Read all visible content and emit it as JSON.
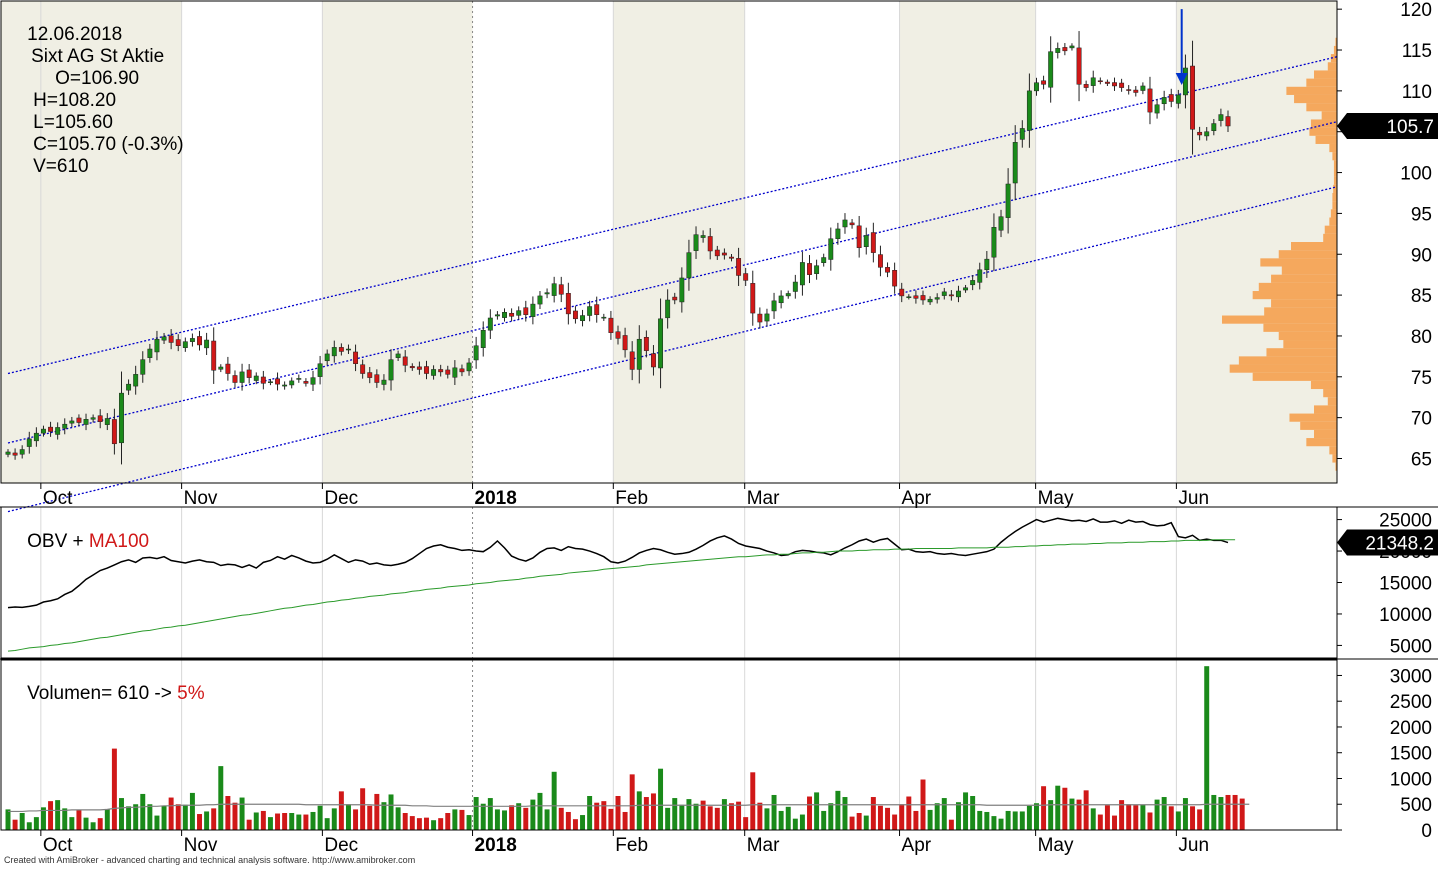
{
  "header": {
    "date": "12.06.2018",
    "name": "Sixt AG St Aktie",
    "open": "O=106.90",
    "high": "H=108.20",
    "low": "L=105.60",
    "close": "C=105.70 (-0.3%)",
    "vol": "V=610"
  },
  "obv_header": {
    "label": "OBV + ",
    "ma": "MA100"
  },
  "volume_header": {
    "label": "Volumen= 610 -> ",
    "pct": "5%"
  },
  "footer": "Created with AmiBroker - advanced charting and technical analysis software. http://www.amibroker.com",
  "colors": {
    "up": "#1a8a1a",
    "down": "#d01818",
    "channel": "#0000cc",
    "obv": "#000000",
    "obv_ma": "#2a9a2a",
    "vol_ma": "#808080",
    "profile": "#f5a04e",
    "shade": "#f0efe4",
    "arrow": "#0033cc"
  },
  "chart_data": [
    {
      "type": "candlestick",
      "title": "12.06.2018 Sixt AG St Aktie",
      "x_range": [
        "2017-09-25",
        "2018-06-12"
      ],
      "ylim": [
        62,
        121
      ],
      "y_ticks": [
        65,
        70,
        75,
        80,
        85,
        90,
        95,
        100,
        105,
        110,
        115,
        120
      ],
      "month_labels": [
        {
          "label": "Oct",
          "date": "2017-10-02",
          "bold": false
        },
        {
          "label": "Nov",
          "date": "2017-11-01",
          "bold": false
        },
        {
          "label": "Dec",
          "date": "2017-12-01",
          "bold": false
        },
        {
          "label": "2018",
          "date": "2018-01-02",
          "bold": true
        },
        {
          "label": "Feb",
          "date": "2018-02-01",
          "bold": false
        },
        {
          "label": "Mar",
          "date": "2018-03-01",
          "bold": false
        },
        {
          "label": "Apr",
          "date": "2018-04-03",
          "bold": false
        },
        {
          "label": "May",
          "date": "2018-05-02",
          "bold": false
        },
        {
          "label": "Jun",
          "date": "2018-06-01",
          "bold": false
        }
      ],
      "last_value": "105.7",
      "channel": {
        "style": "dotted",
        "start": "2017-09-25",
        "end": "2018-06-12",
        "lines": [
          {
            "y0": 75.4,
            "y1": 111.0
          },
          {
            "y0": 66.9,
            "y1": 103.0
          },
          {
            "y0": 58.5,
            "y1": 95.0
          }
        ]
      },
      "arrow": {
        "date": "2018-05-31",
        "from": 120.0,
        "to": 111.2
      },
      "closes": [
        65.8,
        65.4,
        66.1,
        67.4,
        68.1,
        68.6,
        68.3,
        68.8,
        69.2,
        69.6,
        69.4,
        69.8,
        70.0,
        69.5,
        69.9,
        66.8,
        73.0,
        74.1,
        75.3,
        77.1,
        78.4,
        79.6,
        79.9,
        79.2,
        78.8,
        79.3,
        79.7,
        78.9,
        79.5,
        75.8,
        76.2,
        75.4,
        74.3,
        75.6,
        74.9,
        75.1,
        74.2,
        74.4,
        74.1,
        74.0,
        74.5,
        74.8,
        74.2,
        74.9,
        76.6,
        77.8,
        78.6,
        78.1,
        78.4,
        76.6,
        75.4,
        74.9,
        74.3,
        74.6,
        77.1,
        77.8,
        76.4,
        76.1,
        75.9,
        75.4,
        75.9,
        75.6,
        75.3,
        76.1,
        75.6,
        76.7,
        78.8,
        80.7,
        82.2,
        82.6,
        82.9,
        82.4,
        83.1,
        82.6,
        83.9,
        84.9,
        85.3,
        86.4,
        85.1,
        82.7,
        82.1,
        82.5,
        83.6,
        82.6,
        82.3,
        80.4,
        79.7,
        78.3,
        75.9,
        79.6,
        78.2,
        76.2,
        82.1,
        84.4,
        84.4,
        87.1,
        90.2,
        92.4,
        92.3,
        90.4,
        89.8,
        89.9,
        89.5,
        87.4,
        86.8,
        82.8,
        81.7,
        82.7,
        84.3,
        84.9,
        85.2,
        86.6,
        89.0,
        87.5,
        88.6,
        89.6,
        91.9,
        93.1,
        94.2,
        93.6,
        90.8,
        92.3,
        90.2,
        88.4,
        87.8,
        86.1,
        84.9,
        84.8,
        84.6,
        84.4,
        84.5,
        84.7,
        85.4,
        84.9,
        85.5,
        85.9,
        86.8,
        88.1,
        89.4,
        93.3,
        94.6,
        98.6,
        103.7,
        105.4,
        110.0,
        111.0,
        110.8,
        114.8,
        115.2,
        114.9,
        115.5,
        110.8,
        110.4,
        111.6,
        111.2,
        110.9,
        110.6,
        110.4,
        110.1,
        109.8,
        110.6,
        107.4,
        108.3,
        109.2,
        108.7,
        109.5,
        112.8,
        105.3,
        104.6,
        105.0,
        106.0,
        107.1,
        105.7
      ],
      "price_profile": {
        "type": "horizontal-histogram",
        "levels": [
          63,
          64,
          65,
          66,
          67,
          68,
          69,
          70,
          71,
          72,
          73,
          74,
          75,
          76,
          77,
          78,
          79,
          80,
          81,
          82,
          83,
          84,
          85,
          86,
          87,
          88,
          89,
          90,
          91,
          92,
          93,
          94,
          95,
          96,
          97,
          98,
          99,
          100,
          101,
          102,
          103,
          104,
          105,
          106,
          107,
          108,
          109,
          110,
          111,
          112,
          113,
          114,
          115,
          116
        ],
        "weights": [
          0,
          2,
          6,
          10,
          40,
          30,
          48,
          62,
          30,
          12,
          18,
          34,
          110,
          140,
          128,
          92,
          70,
          76,
          96,
          150,
          95,
          86,
          110,
          102,
          86,
          72,
          100,
          76,
          60,
          18,
          16,
          10,
          8,
          6,
          6,
          5,
          4,
          4,
          4,
          6,
          10,
          28,
          36,
          34,
          20,
          40,
          56,
          66,
          40,
          30,
          12,
          8,
          4,
          2
        ]
      }
    },
    {
      "type": "line",
      "title": "OBV + MA100",
      "ylim": [
        3000,
        27000
      ],
      "y_ticks": [
        5000,
        10000,
        15000,
        20000,
        25000
      ],
      "last_value": "21348.2",
      "series": [
        {
          "name": "OBV",
          "color": "#000000",
          "values": [
            11000,
            11100,
            11050,
            11200,
            11400,
            11900,
            12100,
            12400,
            13100,
            13600,
            14500,
            15500,
            16200,
            16900,
            17300,
            17800,
            18300,
            18600,
            18200,
            18900,
            19000,
            18800,
            19100,
            18500,
            18300,
            18100,
            18400,
            18600,
            18300,
            18200,
            17700,
            17900,
            17800,
            17400,
            17800,
            17300,
            18200,
            18500,
            19100,
            18700,
            19300,
            18900,
            18400,
            18100,
            18200,
            18700,
            19400,
            18800,
            18200,
            18600,
            18400,
            17900,
            18100,
            17800,
            17700,
            17900,
            18200,
            18800,
            19600,
            20400,
            20800,
            21000,
            20600,
            20400,
            20100,
            20200,
            20000,
            19900,
            20600,
            21600,
            20500,
            19200,
            18700,
            18400,
            18900,
            19800,
            20400,
            20500,
            20100,
            20700,
            20400,
            20300,
            20000,
            19600,
            19100,
            18300,
            18100,
            18400,
            19000,
            19700,
            20100,
            20400,
            20200,
            19800,
            19500,
            19600,
            19800,
            20300,
            20900,
            21600,
            22100,
            22400,
            21900,
            21200,
            20800,
            20600,
            20400,
            20000,
            19700,
            19300,
            19400,
            19900,
            20100,
            20000,
            19800,
            19700,
            19400,
            19900,
            20500,
            21000,
            21600,
            21900,
            21400,
            21800,
            22000,
            21100,
            20200,
            20300,
            19900,
            19800,
            19900,
            19600,
            19500,
            19600,
            19400,
            19300,
            19500,
            19700,
            19900,
            20300,
            21400,
            22300,
            23100,
            23800,
            24400,
            25000,
            24600,
            24900,
            25200,
            25000,
            24800,
            24900,
            24700,
            25100,
            24600,
            24600,
            24800,
            24400,
            24900,
            24600,
            24700,
            24200,
            24000,
            24100,
            24500,
            22300,
            22100,
            22500,
            21700,
            21900,
            21700,
            21700,
            21348
          ]
        },
        {
          "name": "MA100",
          "color": "#2a9a2a",
          "values": [
            4100,
            4200,
            4400,
            4600,
            4700,
            4800,
            5000,
            5100,
            5300,
            5400,
            5600,
            5800,
            6000,
            6200,
            6300,
            6500,
            6700,
            6900,
            7100,
            7300,
            7400,
            7600,
            7800,
            7900,
            8100,
            8200,
            8400,
            8600,
            8800,
            9000,
            9200,
            9400,
            9600,
            9800,
            9900,
            10100,
            10300,
            10500,
            10700,
            10900,
            11000,
            11200,
            11400,
            11500,
            11700,
            11900,
            12000,
            12200,
            12300,
            12500,
            12600,
            12800,
            12900,
            13000,
            13200,
            13300,
            13400,
            13600,
            13700,
            13900,
            14000,
            14100,
            14300,
            14400,
            14500,
            14600,
            14800,
            14900,
            15000,
            15200,
            15300,
            15400,
            15500,
            15700,
            15800,
            16000,
            16100,
            16200,
            16300,
            16500,
            16600,
            16700,
            16800,
            16900,
            17100,
            17200,
            17300,
            17400,
            17500,
            17600,
            17800,
            17900,
            18000,
            18100,
            18200,
            18300,
            18400,
            18500,
            18600,
            18700,
            18800,
            18900,
            19000,
            19100,
            19100,
            19200,
            19300,
            19400,
            19400,
            19500,
            19500,
            19600,
            19700,
            19700,
            19800,
            19800,
            19900,
            20000,
            20000,
            20000,
            20100,
            20100,
            20200,
            20200,
            20200,
            20300,
            20300,
            20300,
            20400,
            20400,
            20400,
            20400,
            20400,
            20400,
            20500,
            20500,
            20500,
            20500,
            20500,
            20600,
            20600,
            20600,
            20700,
            20700,
            20800,
            20800,
            20900,
            20900,
            21000,
            21000,
            21100,
            21100,
            21100,
            21200,
            21200,
            21300,
            21300,
            21300,
            21400,
            21400,
            21400,
            21500,
            21500,
            21500,
            21600,
            21600,
            21700,
            21700,
            21700,
            21700,
            21800,
            21800,
            21800,
            21800
          ]
        }
      ]
    },
    {
      "type": "bar",
      "title": "Volumen= 610 -> 5%",
      "ylim": [
        0,
        3300
      ],
      "y_ticks": [
        0,
        500,
        1000,
        1500,
        2000,
        2500,
        3000
      ],
      "values": [
        400,
        200,
        330,
        150,
        250,
        440,
        560,
        580,
        420,
        250,
        390,
        240,
        150,
        230,
        400,
        1580,
        620,
        460,
        500,
        700,
        500,
        280,
        470,
        630,
        500,
        490,
        720,
        310,
        360,
        420,
        1240,
        660,
        530,
        630,
        200,
        340,
        370,
        250,
        320,
        330,
        330,
        300,
        300,
        350,
        470,
        230,
        420,
        750,
        500,
        400,
        810,
        470,
        700,
        540,
        690,
        440,
        330,
        270,
        230,
        240,
        190,
        230,
        330,
        400,
        390,
        290,
        640,
        510,
        620,
        400,
        380,
        480,
        520,
        430,
        590,
        720,
        400,
        1130,
        430,
        350,
        210,
        290,
        660,
        530,
        560,
        410,
        660,
        350,
        1080,
        750,
        640,
        710,
        1190,
        430,
        620,
        490,
        600,
        510,
        570,
        460,
        430,
        600,
        520,
        550,
        250,
        1120,
        530,
        420,
        680,
        370,
        450,
        220,
        300,
        650,
        730,
        370,
        520,
        760,
        640,
        260,
        330,
        280,
        640,
        470,
        430,
        300,
        500,
        650,
        370,
        980,
        390,
        520,
        620,
        200,
        540,
        730,
        660,
        370,
        350,
        270,
        220,
        370,
        360,
        360,
        470,
        520,
        850,
        580,
        860,
        820,
        610,
        590,
        770,
        420,
        300,
        480,
        280,
        580,
        500,
        480,
        490,
        340,
        590,
        640,
        460,
        360,
        620,
        460,
        400,
        3180,
        680,
        640,
        680,
        680,
        610
      ],
      "ma_values": [
        360,
        360,
        360,
        370,
        370,
        380,
        380,
        380,
        380,
        390,
        390,
        390,
        390,
        390,
        400,
        420,
        430,
        440,
        440,
        450,
        460,
        460,
        470,
        470,
        480,
        480,
        480,
        480,
        490,
        490,
        500,
        500,
        500,
        500,
        500,
        500,
        500,
        500,
        500,
        500,
        500,
        500,
        490,
        490,
        490,
        490,
        490,
        490,
        490,
        490,
        490,
        490,
        480,
        480,
        480,
        480,
        480,
        470,
        470,
        470,
        460,
        460,
        460,
        460,
        460,
        460,
        460,
        460,
        460,
        460,
        460,
        460,
        460,
        460,
        470,
        470,
        470,
        470,
        470,
        470,
        470,
        470,
        470,
        470,
        470,
        470,
        470,
        470,
        470,
        480,
        480,
        480,
        480,
        480,
        480,
        480,
        480,
        480,
        480,
        480,
        480,
        480,
        480,
        480,
        480,
        490,
        490,
        490,
        490,
        490,
        490,
        490,
        490,
        490,
        490,
        490,
        490,
        490,
        490,
        490,
        490,
        490,
        490,
        490,
        490,
        490,
        490,
        490,
        490,
        490,
        490,
        490,
        490,
        490,
        490,
        490,
        490,
        490,
        480,
        480,
        480,
        480,
        480,
        480,
        480,
        480,
        480,
        490,
        490,
        490,
        490,
        490,
        490,
        490,
        490,
        490,
        490,
        490,
        490,
        490,
        490,
        490,
        490,
        490,
        490,
        490,
        490,
        490,
        490,
        500,
        500,
        500,
        500,
        500,
        500,
        500
      ]
    }
  ]
}
